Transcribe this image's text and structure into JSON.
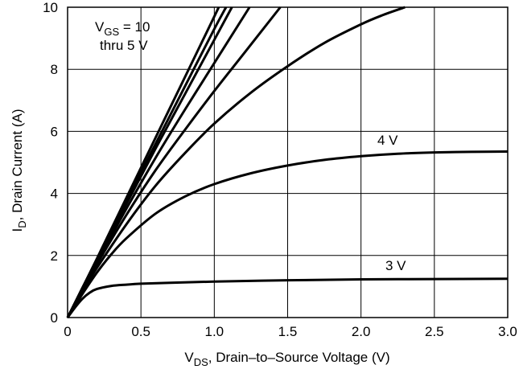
{
  "chart_data": {
    "type": "line",
    "xlabel_main": "V",
    "xlabel_sub": "DS",
    "xlabel_rest": ", Drain–to–Source Voltage (V)",
    "ylabel_main": "I",
    "ylabel_sub": "D",
    "ylabel_rest": ", Drain Current (A)",
    "xlim": [
      0,
      3.0
    ],
    "ylim": [
      0,
      10
    ],
    "x_ticks": [
      "0",
      "0.5",
      "1.0",
      "1.5",
      "2.0",
      "2.5",
      "3.0"
    ],
    "y_ticks": [
      "0",
      "2",
      "4",
      "6",
      "8",
      "10"
    ],
    "grid": true,
    "annotations": {
      "vgs_main": "V",
      "vgs_sub": "GS",
      "vgs_rest": " = 10",
      "vgs_line2": "thru 5 V",
      "label_4v": "4 V",
      "label_3v": "3 V"
    },
    "series": [
      {
        "x": [
          0,
          0.1,
          0.2,
          0.4,
          0.6,
          0.8,
          1.0,
          1.03
        ],
        "y": [
          0,
          0.95,
          1.9,
          3.85,
          5.8,
          7.75,
          9.7,
          10
        ]
      },
      {
        "x": [
          0,
          0.1,
          0.2,
          0.4,
          0.6,
          0.8,
          1.0,
          1.08
        ],
        "y": [
          0,
          0.93,
          1.86,
          3.75,
          5.6,
          7.45,
          9.3,
          10
        ]
      },
      {
        "x": [
          0,
          0.1,
          0.2,
          0.4,
          0.6,
          0.8,
          1.0,
          1.12
        ],
        "y": [
          0,
          0.92,
          1.82,
          3.65,
          5.45,
          7.2,
          8.95,
          10
        ]
      },
      {
        "x": [
          0,
          0.1,
          0.2,
          0.4,
          0.6,
          0.8,
          1.0,
          1.24
        ],
        "y": [
          0,
          0.9,
          1.78,
          3.5,
          5.15,
          6.7,
          8.2,
          10
        ]
      },
      {
        "x": [
          0,
          0.1,
          0.2,
          0.4,
          0.6,
          0.8,
          1.0,
          1.2,
          1.45
        ],
        "y": [
          0,
          0.88,
          1.72,
          3.3,
          4.75,
          6.05,
          7.3,
          8.5,
          10
        ]
      },
      {
        "x": [
          0,
          0.1,
          0.2,
          0.4,
          0.6,
          0.8,
          1.0,
          1.25,
          1.5,
          1.75,
          2.0,
          2.15,
          2.3
        ],
        "y": [
          0,
          0.82,
          1.6,
          3.0,
          4.25,
          5.3,
          6.25,
          7.25,
          8.1,
          8.85,
          9.45,
          9.75,
          10
        ]
      },
      {
        "x": [
          0,
          0.1,
          0.2,
          0.3,
          0.4,
          0.6,
          0.8,
          1.0,
          1.25,
          1.5,
          1.75,
          2.0,
          2.25,
          2.5,
          2.75,
          3.0
        ],
        "y": [
          0,
          0.75,
          1.45,
          2.05,
          2.55,
          3.35,
          3.9,
          4.3,
          4.65,
          4.9,
          5.08,
          5.2,
          5.28,
          5.32,
          5.34,
          5.35
        ]
      },
      {
        "x": [
          0,
          0.05,
          0.1,
          0.15,
          0.2,
          0.3,
          0.4,
          0.5,
          0.7,
          1.0,
          1.5,
          2.0,
          2.5,
          3.0
        ],
        "y": [
          0,
          0.32,
          0.6,
          0.8,
          0.92,
          1.02,
          1.06,
          1.09,
          1.12,
          1.16,
          1.2,
          1.23,
          1.24,
          1.25
        ]
      }
    ]
  }
}
